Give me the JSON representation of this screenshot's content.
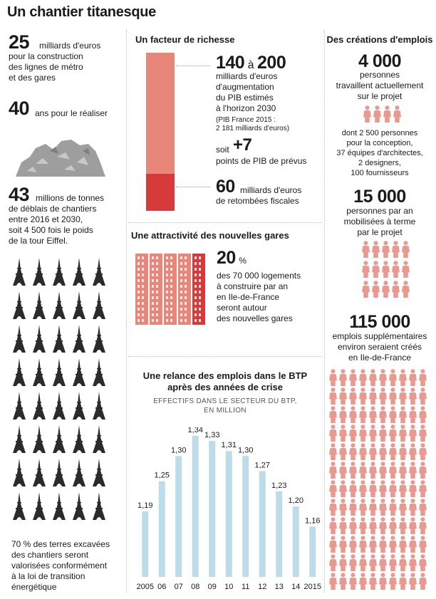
{
  "title": "Un chantier titanesque",
  "colors": {
    "salmon": "#e8867a",
    "red": "#d63a3a",
    "person": "#e89a90",
    "bar": "#bcdcea"
  },
  "left": {
    "stat1": {
      "value": "25",
      "text": [
        "milliards d'euros",
        "pour la construction",
        "des lignes de métro",
        "et des gares"
      ]
    },
    "stat2": {
      "value": "40",
      "text": "ans pour le réaliser"
    },
    "debris_icon": "rubble-pile-icon",
    "stat3": {
      "value": "43",
      "text": [
        "millions de tonnes",
        "de déblais de chantiers",
        "entre 2016 et 2030,",
        "soit  4 500 fois le poids",
        "de la tour Eiffel."
      ]
    },
    "tower_icon": "eiffel-tower-icon",
    "note": [
      "70 % des terres excavées",
      "des chantiers seront",
      "valorisées conformément",
      "à la loi de transition",
      "énergétique"
    ]
  },
  "middle": {
    "richesse": {
      "heading": "Un facteur de richesse",
      "range_a": "140",
      "range_sep": "à",
      "range_b": "200",
      "lines": [
        "milliards d'euros",
        "d'augmentation",
        "du PIB estimés",
        "à l'horizon 2030"
      ],
      "note": [
        "(PIB France 2015 :",
        "2 181 milliards d'euros)"
      ],
      "soit": "soit",
      "plus": "+7",
      "plus_text": "points de PIB de prévus",
      "fiscal_value": "60",
      "fiscal_text": [
        "milliards d'euros",
        "de retombées fiscales"
      ]
    },
    "gares": {
      "heading": "Une attractivité des nouvelles gares",
      "value": "20",
      "unit": "%",
      "lines": [
        "des 70 000 logements",
        "à construire par an",
        "en Ile-de-France",
        "seront autour",
        "des nouvelles gares"
      ],
      "building_icon": "building-icon"
    },
    "btp": {
      "heading": [
        "Une relance des emplois dans le BTP",
        "après des années de crise"
      ],
      "subheading": [
        "EFFECTIFS DANS LE SECTEUR DU BTP,",
        "EN MILLION"
      ]
    }
  },
  "right": {
    "heading": "Des créations d'emplois",
    "person_icon": "person-icon",
    "b1": {
      "value": "4 000",
      "lines": [
        "personnes",
        "travaillent actuellement",
        "sur le projet"
      ]
    },
    "b1_detail": [
      "dont 2 500 personnes",
      "pour la conception,",
      "37 équipes d'architectes,",
      "2 designers,",
      "100 fournisseurs"
    ],
    "b2": {
      "value": "15 000",
      "lines": [
        "personnes par an",
        "mobilisées à terme",
        "par le projet"
      ]
    },
    "b3": {
      "value": "115 000",
      "lines": [
        "emplois supplémentaires",
        "environ seraient créés",
        "en Ile-de-France"
      ]
    }
  },
  "chart_data": {
    "type": "bar",
    "categories": [
      "2005",
      "06",
      "07",
      "08",
      "09",
      "10",
      "11",
      "12",
      "13",
      "14",
      "2015"
    ],
    "values": [
      1.19,
      1.25,
      1.3,
      1.34,
      1.33,
      1.31,
      1.3,
      1.27,
      1.23,
      1.2,
      1.16
    ],
    "value_labels": [
      "1,19",
      "1,25",
      "1,30",
      "1,34",
      "1,33",
      "1,31",
      "1,30",
      "1,27",
      "1,23",
      "1,20",
      "1,16"
    ],
    "title": "Une relance des emplois dans le BTP après des années de crise",
    "subtitle": "EFFECTIFS DANS LE SECTEUR DU BTP, EN MILLION",
    "xlabel": "",
    "ylabel": "",
    "ylim": [
      1.06,
      1.34
    ],
    "color": "#bcdcea",
    "grid": false
  }
}
